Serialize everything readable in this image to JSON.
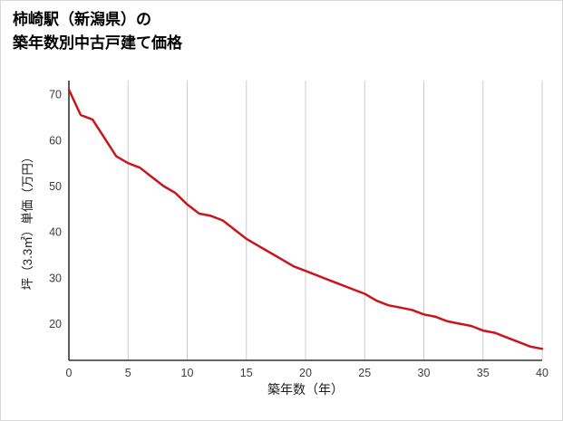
{
  "page": {
    "background": "#ffffff",
    "border_color": "#d9d9d9"
  },
  "title": {
    "line1": "柿崎駅（新潟県）の",
    "line2": "築年数別中古戸建て価格"
  },
  "chart_data": {
    "type": "line",
    "title": "柿崎駅（新潟県）の築年数別中古戸建て価格",
    "xlabel": "築年数（年）",
    "ylabel": "坪（3.3㎡）単価（万円）",
    "x": [
      0,
      1,
      2,
      3,
      4,
      5,
      6,
      7,
      8,
      9,
      10,
      11,
      12,
      13,
      14,
      15,
      16,
      17,
      18,
      19,
      20,
      21,
      22,
      23,
      24,
      25,
      26,
      27,
      28,
      29,
      30,
      31,
      32,
      33,
      34,
      35,
      36,
      37,
      38,
      39,
      40
    ],
    "values": [
      71,
      65.5,
      64.5,
      60.5,
      56.5,
      55,
      54,
      52,
      50,
      48.5,
      46,
      44,
      43.5,
      42.5,
      40.5,
      38.5,
      37,
      35.5,
      34,
      32.5,
      31.5,
      30.5,
      29.5,
      28.5,
      27.5,
      26.5,
      25,
      24,
      23.5,
      23,
      22,
      21.5,
      20.5,
      20,
      19.5,
      18.5,
      18,
      17,
      16,
      15,
      14.5
    ],
    "xlim": [
      0,
      40
    ],
    "ylim": [
      12,
      73
    ],
    "x_ticks": [
      0,
      5,
      10,
      15,
      20,
      25,
      30,
      35,
      40
    ],
    "y_ticks": [
      20,
      30,
      40,
      50,
      60,
      70
    ],
    "line_color": "#c9151b",
    "grid_color": "#cccccc",
    "axis_color": "#333333",
    "tick_label_color": "#3d3d3d",
    "axis_title_color": "#1f1f1f",
    "grid": "vertical-only",
    "legend": "none"
  }
}
